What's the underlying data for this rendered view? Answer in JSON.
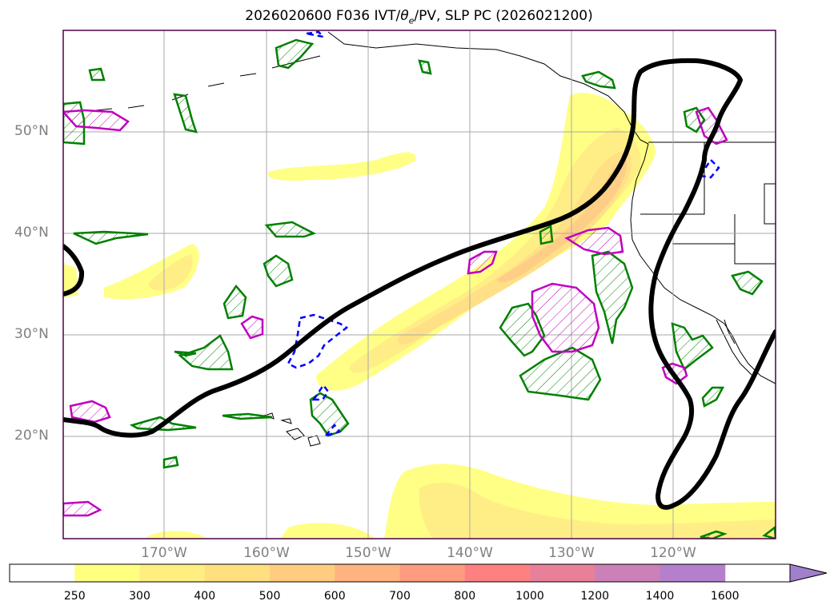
{
  "title": {
    "main": "2026020600 F036 IVT/",
    "theta": "θ",
    "theta_sub": "e",
    "rest": "/PV, SLP PC (2026021200)"
  },
  "map": {
    "lat_labels": [
      "50°N",
      "40°N",
      "30°N",
      "20°N"
    ],
    "lon_labels": [
      "170°W",
      "160°W",
      "150°W",
      "140°W",
      "130°W",
      "120°W"
    ],
    "colors": {
      "land_outline": "#000000",
      "slp_contour": "#000000",
      "pv_green": "#008000",
      "pv_magenta": "#bf00bf",
      "pv_blue_dashed": "#0000ff",
      "grid": "#a9a9a9",
      "frame": "#4b0049"
    }
  },
  "colorbar": {
    "levels": [
      "250",
      "300",
      "400",
      "500",
      "600",
      "700",
      "800",
      "1000",
      "1200",
      "1400",
      "1600"
    ],
    "colors": [
      "#ffffff",
      "#ffff80",
      "#ffee80",
      "#ffdf80",
      "#ffcc80",
      "#ffb480",
      "#ff9c80",
      "#ff8080",
      "#e8809a",
      "#cc80b8",
      "#b480cc",
      "#a080cc"
    ]
  }
}
